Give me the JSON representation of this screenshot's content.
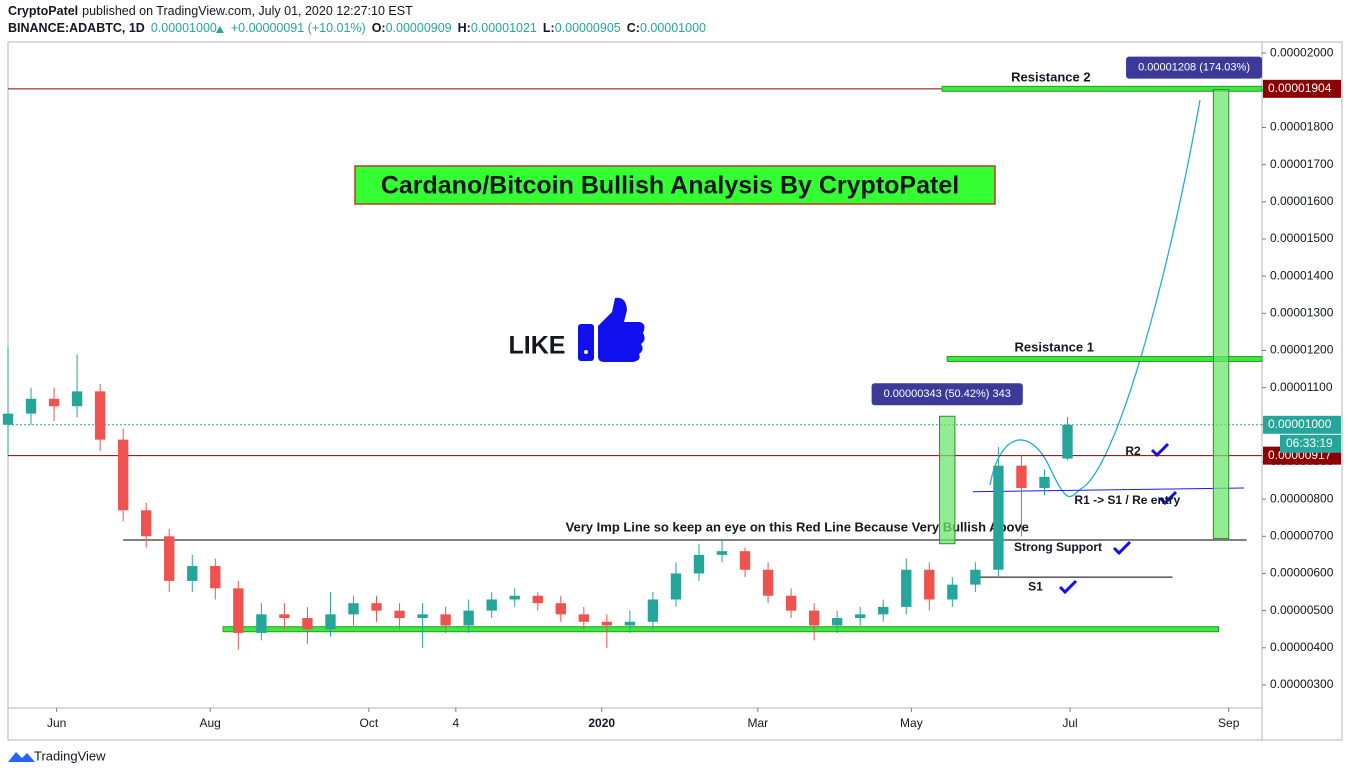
{
  "header": {
    "author": "CryptoPatel",
    "published": "published on TradingView.com, July 01, 2020 12:27:10 EST",
    "symbol": "BINANCE:ADABTC, 1D",
    "price": "0.00001000",
    "change": "+0.00000091 (+10.01%)",
    "ohlc": [
      {
        "key": "O:",
        "value": "0.00000909"
      },
      {
        "key": "H:",
        "value": "0.00001021"
      },
      {
        "key": "L:",
        "value": "0.00000905"
      },
      {
        "key": "C:",
        "value": "0.00001000"
      }
    ]
  },
  "footer": {
    "brand": "TradingView"
  },
  "chart_data": {
    "type": "candlestick",
    "title": "Cardano/Bitcoin Bullish Analysis By CryptoPatel",
    "annotation": "LIKE",
    "up_color": "#26a69a",
    "down_color": "#ef5350",
    "x": [
      0,
      9,
      18,
      27,
      36,
      45,
      54,
      63,
      72,
      81,
      90,
      99,
      108,
      117,
      126,
      135,
      144,
      153,
      162,
      171,
      180,
      189,
      198,
      207,
      216,
      225,
      234,
      243,
      252,
      261,
      270,
      279,
      288,
      297,
      306,
      315,
      324,
      333,
      342,
      351,
      360,
      369,
      378,
      387,
      396,
      405,
      414
    ],
    "open": [
      1e-05,
      1.03e-05,
      1.07e-05,
      1.05e-05,
      1.09e-05,
      9.6e-06,
      7.7e-06,
      7e-06,
      5.8e-06,
      6.2e-06,
      5.6e-06,
      4.4e-06,
      4.9e-06,
      4.8e-06,
      4.5e-06,
      4.9e-06,
      5.2e-06,
      5e-06,
      4.8e-06,
      4.9e-06,
      4.6e-06,
      5e-06,
      5.3e-06,
      5.4e-06,
      5.2e-06,
      4.9e-06,
      4.7e-06,
      4.6e-06,
      4.7e-06,
      5.3e-06,
      6e-06,
      6.5e-06,
      6.6e-06,
      6.1e-06,
      5.4e-06,
      5e-06,
      4.6e-06,
      4.8e-06,
      4.9e-06,
      5.1e-06,
      6.1e-06,
      5.3e-06,
      5.7e-06,
      6.1e-06,
      8.9e-06,
      8.3e-06,
      9.09e-06
    ],
    "high": [
      1.21e-05,
      1.1e-05,
      1.1e-05,
      1.19e-05,
      1.11e-05,
      9.9e-06,
      7.9e-06,
      7.2e-06,
      6.5e-06,
      6.4e-06,
      5.8e-06,
      5.2e-06,
      5.2e-06,
      5.1e-06,
      5.5e-06,
      5.4e-06,
      5.4e-06,
      5.2e-06,
      5.2e-06,
      5.1e-06,
      5.3e-06,
      5.5e-06,
      5.6e-06,
      5.5e-06,
      5.4e-06,
      5.1e-06,
      4.9e-06,
      5e-06,
      5.5e-06,
      6.3e-06,
      6.8e-06,
      6.9e-06,
      6.7e-06,
      6.3e-06,
      5.6e-06,
      5.2e-06,
      5e-06,
      5.1e-06,
      5.3e-06,
      6.4e-06,
      6.3e-06,
      5.9e-06,
      6.3e-06,
      9.4e-06,
      9.2e-06,
      8.8e-06,
      1.021e-05
    ],
    "low": [
      9.2e-06,
      1e-05,
      1.01e-05,
      1.02e-05,
      9.3e-06,
      7.4e-06,
      6.7e-06,
      5.5e-06,
      5.5e-06,
      5.3e-06,
      3.95e-06,
      4.2e-06,
      4.5e-06,
      4.1e-06,
      4.3e-06,
      4.6e-06,
      4.7e-06,
      4.5e-06,
      4e-06,
      4.4e-06,
      4.4e-06,
      4.8e-06,
      5.1e-06,
      5e-06,
      4.7e-06,
      4.5e-06,
      4e-06,
      4.4e-06,
      4.5e-06,
      5.1e-06,
      5.8e-06,
      6.3e-06,
      5.9e-06,
      5.2e-06,
      4.8e-06,
      4.2e-06,
      4.4e-06,
      4.6e-06,
      4.7e-06,
      4.9e-06,
      5e-06,
      5.1e-06,
      5.5e-06,
      5.9e-06,
      7e-06,
      8.1e-06,
      9.05e-06
    ],
    "close": [
      1.03e-05,
      1.07e-05,
      1.05e-05,
      1.09e-05,
      9.6e-06,
      7.7e-06,
      7e-06,
      5.8e-06,
      6.2e-06,
      5.6e-06,
      4.4e-06,
      4.9e-06,
      4.8e-06,
      4.5e-06,
      4.9e-06,
      5.2e-06,
      5e-06,
      4.8e-06,
      4.9e-06,
      4.6e-06,
      5e-06,
      5.3e-06,
      5.4e-06,
      5.2e-06,
      4.9e-06,
      4.7e-06,
      4.6e-06,
      4.7e-06,
      5.3e-06,
      6e-06,
      6.5e-06,
      6.6e-06,
      6.1e-06,
      5.4e-06,
      5e-06,
      4.6e-06,
      4.8e-06,
      4.9e-06,
      5.1e-06,
      6.1e-06,
      5.3e-06,
      5.7e-06,
      6.1e-06,
      8.9e-06,
      8.3e-06,
      8.6e-06,
      1e-05
    ],
    "xlim": [
      0,
      490
    ],
    "xticks": [
      {
        "value": 19,
        "label": "Jun"
      },
      {
        "value": 79,
        "label": "Aug"
      },
      {
        "value": 141,
        "label": "Oct"
      },
      {
        "value": 175,
        "label": "4"
      },
      {
        "value": 232,
        "label": "2020"
      },
      {
        "value": 293,
        "label": "Mar"
      },
      {
        "value": 353,
        "label": "May"
      },
      {
        "value": 415,
        "label": "Jul"
      },
      {
        "value": 477,
        "label": "Sep"
      }
    ],
    "ylim": [
      2.38e-06,
      2.03e-05
    ],
    "yticks": [
      {
        "value": 3e-06,
        "label": "0.00000300"
      },
      {
        "value": 4e-06,
        "label": "0.00000400"
      },
      {
        "value": 5e-06,
        "label": "0.00000500"
      },
      {
        "value": 6e-06,
        "label": "0.00000600"
      },
      {
        "value": 7e-06,
        "label": "0.00000700"
      },
      {
        "value": 8e-06,
        "label": "0.00000800"
      },
      {
        "value": 9e-06,
        "label": "0.00000900"
      },
      {
        "value": 1e-05,
        "label": "0.00001000"
      },
      {
        "value": 1.1e-05,
        "label": "0.00001100"
      },
      {
        "value": 1.2e-05,
        "label": "0.00001200"
      },
      {
        "value": 1.3e-05,
        "label": "0.00001300"
      },
      {
        "value": 1.4e-05,
        "label": "0.00001400"
      },
      {
        "value": 1.5e-05,
        "label": "0.00001500"
      },
      {
        "value": 1.6e-05,
        "label": "0.00001600"
      },
      {
        "value": 1.7e-05,
        "label": "0.00001700"
      },
      {
        "value": 1.8e-05,
        "label": "0.00001800"
      },
      {
        "value": 1.9e-05,
        "label": "0.00001900"
      },
      {
        "value": 2e-05,
        "label": "0.00002000"
      }
    ],
    "hlines": [
      {
        "value": 1.904e-05,
        "label": "0.00001904",
        "color": "#8b0000"
      },
      {
        "value": 9.17e-06,
        "label": "0.00000917",
        "color": "#8b0000"
      },
      {
        "value": 1e-05,
        "label": "0.00001000",
        "color": "#26a69a",
        "dashed": true,
        "countdown": "06:33:19"
      }
    ],
    "zones": [
      {
        "label": "Resistance 2",
        "value": 1.904e-05,
        "from": 365,
        "to": 490
      },
      {
        "label": "Resistance 1",
        "value": 1.177e-05,
        "from": 367,
        "to": 490
      },
      {
        "value": 4.5e-06,
        "from": 84,
        "to": 473
      }
    ],
    "trendlines": [
      {
        "label": "Very Imp Line so keep an eye on this Red Line Because Very Bullish Above",
        "from": 45,
        "to": 484,
        "values": [
          6.9e-06,
          6.9e-06
        ],
        "color": "#000000"
      },
      {
        "label": "S1",
        "from": 378,
        "to": 455,
        "values": [
          5.9e-06,
          5.9e-06
        ],
        "color": "#000000"
      },
      {
        "label": "R1 -> S1 / Re entry",
        "from": 377,
        "to": 483,
        "values": [
          8.2e-06,
          8.3e-06
        ],
        "color": "#1a1aff"
      }
    ],
    "notes": [
      "R2",
      "Strong Support"
    ],
    "measures": [
      {
        "from": 6.8e-06,
        "to": 1.023e-05,
        "start": 364,
        "end": 370,
        "label": "0.00000343 (50.42%) 343"
      },
      {
        "from": 6.94e-06,
        "to": 1.902e-05,
        "start": 471,
        "end": 477,
        "label": "0.00001208 (174.03%)"
      }
    ]
  }
}
